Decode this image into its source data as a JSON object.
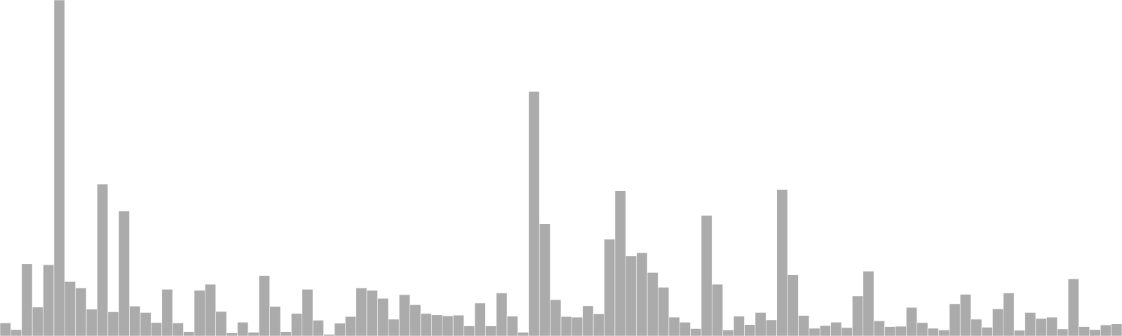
{
  "chart_data": {
    "type": "bar",
    "title": "",
    "xlabel": "",
    "ylabel": "",
    "ylim": [
      0,
      100
    ],
    "grid": false,
    "legend": "none",
    "colors": {
      "bar": "#ababab",
      "bar_edge": "#ffffff",
      "background": "#ffffff"
    },
    "values": [
      3.9,
      1.9,
      21.5,
      8.6,
      21.2,
      100,
      16.2,
      14.3,
      8.0,
      45.2,
      7.2,
      37.2,
      8.9,
      7.0,
      4.0,
      13.9,
      3.9,
      1.3,
      13.6,
      15.4,
      7.3,
      0.9,
      4.1,
      1.1,
      18.0,
      8.8,
      1.3,
      6.7,
      13.9,
      4.7,
      0.5,
      3.8,
      5.8,
      14.3,
      13.6,
      11.2,
      5.0,
      12.3,
      9.3,
      6.7,
      6.3,
      6.0,
      6.2,
      3.0,
      9.8,
      3.0,
      12.8,
      5.9,
      1.1,
      72.8,
      33.4,
      10.8,
      5.8,
      5.6,
      9.0,
      6.6,
      28.8,
      43.2,
      23.8,
      24.8,
      18.9,
      14.5,
      5.6,
      4.1,
      2.2,
      35.9,
      15.4,
      1.8,
      5.9,
      3.4,
      7.0,
      4.8,
      43.6,
      18.2,
      6.1,
      2.3,
      3.1,
      4.1,
      2.5,
      11.9,
      19.3,
      4.5,
      2.8,
      2.9,
      8.5,
      4.0,
      2.3,
      1.8,
      9.6,
      12.4,
      5.0,
      2.6,
      8.1,
      12.8,
      1.7,
      7.0,
      5.2,
      5.6,
      2.1,
      17.0,
      2.8,
      1.9,
      3.3,
      3.6
    ]
  }
}
